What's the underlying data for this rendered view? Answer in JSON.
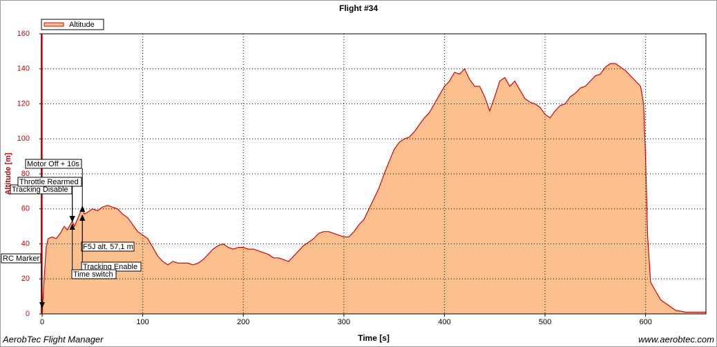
{
  "chart_data": {
    "type": "area",
    "title": "Flight #34",
    "xlabel": "Time [s]",
    "ylabel": "Altitude [m]",
    "footer_left": "AerobTec Flight Manager",
    "footer_right": "www.aerobtec.com",
    "xlim": [
      0,
      660
    ],
    "ylim": [
      0,
      160
    ],
    "xticks": [
      0,
      100,
      200,
      300,
      400,
      500,
      600
    ],
    "yticks": [
      0,
      20,
      40,
      60,
      80,
      100,
      120,
      140,
      160
    ],
    "grid": true,
    "legend": "upper left",
    "x": [
      0,
      2,
      4,
      6,
      10,
      14,
      18,
      20,
      22,
      25,
      28,
      30,
      32,
      35,
      38,
      40,
      42,
      45,
      50,
      55,
      60,
      65,
      70,
      75,
      80,
      85,
      90,
      95,
      100,
      105,
      110,
      115,
      120,
      125,
      130,
      135,
      140,
      145,
      150,
      155,
      160,
      165,
      170,
      175,
      180,
      185,
      190,
      195,
      200,
      205,
      210,
      215,
      220,
      225,
      230,
      235,
      240,
      245,
      250,
      255,
      260,
      265,
      270,
      275,
      280,
      285,
      290,
      295,
      300,
      305,
      310,
      315,
      320,
      325,
      330,
      335,
      340,
      345,
      350,
      355,
      360,
      365,
      370,
      375,
      380,
      385,
      390,
      395,
      400,
      405,
      410,
      415,
      420,
      425,
      430,
      435,
      440,
      445,
      450,
      455,
      460,
      465,
      470,
      475,
      480,
      485,
      490,
      495,
      500,
      505,
      510,
      515,
      520,
      525,
      530,
      535,
      540,
      545,
      550,
      555,
      560,
      565,
      570,
      575,
      580,
      585,
      590,
      595,
      598,
      600,
      602,
      605,
      610,
      615,
      620,
      625,
      630,
      640,
      650,
      660
    ],
    "series": [
      {
        "name": "Altitude",
        "color": "#e00000",
        "fill": "#fbc08e",
        "values": [
          0,
          20,
          38,
          43,
          44,
          43,
          46,
          48,
          50,
          48,
          51,
          53,
          50,
          54,
          58,
          60,
          57,
          58,
          60,
          59,
          61,
          62,
          61,
          60,
          57,
          55,
          51,
          47,
          45,
          43,
          38,
          33,
          30,
          28,
          30,
          29,
          29,
          29,
          28,
          29,
          31,
          34,
          37,
          39,
          40,
          38,
          37,
          38,
          38,
          37,
          37,
          36,
          35,
          34,
          32,
          32,
          31,
          30,
          33,
          36,
          39,
          41,
          43,
          46,
          47,
          47,
          46,
          45,
          44,
          44,
          47,
          51,
          54,
          60,
          66,
          72,
          80,
          87,
          94,
          98,
          100,
          101,
          104,
          108,
          112,
          115,
          120,
          125,
          130,
          133,
          138,
          137,
          140,
          134,
          130,
          130,
          124,
          116,
          124,
          133,
          135,
          130,
          133,
          128,
          123,
          121,
          120,
          118,
          114,
          112,
          116,
          119,
          120,
          124,
          126,
          129,
          130,
          133,
          136,
          137,
          141,
          143,
          143,
          141,
          139,
          136,
          133,
          130,
          120,
          90,
          45,
          18,
          13,
          8,
          6,
          4,
          2,
          1,
          1,
          1
        ]
      }
    ],
    "annotations": [
      {
        "text": "RC Marker",
        "x": 0
      },
      {
        "text": "Tracking Disable",
        "x": 30
      },
      {
        "text": "Throttle Rearmed",
        "x": 30
      },
      {
        "text": "Motor Off + 10s",
        "x": 40
      },
      {
        "text": "F5J alt. 57,1 m",
        "x": 40
      },
      {
        "text": "Tracking Enable",
        "x": 40
      },
      {
        "text": "Time switch",
        "x": 30
      }
    ]
  }
}
